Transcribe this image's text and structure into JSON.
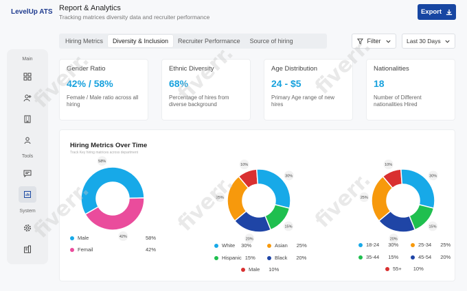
{
  "brand": "LevelUp ATS",
  "header": {
    "title": "Report & Analytics",
    "subtitle": "Tracking matrices diversity data and recruiter performance",
    "export_label": "Export"
  },
  "tabs": [
    {
      "label": "Hiring Metrics",
      "active": false
    },
    {
      "label": "Diversity & Inclusion",
      "active": true
    },
    {
      "label": "Recruiter Performance",
      "active": false
    },
    {
      "label": "Source of hiring",
      "active": false
    }
  ],
  "filter_label": "Filter",
  "period_label": "Last 30 Days",
  "sidebar": {
    "sections": [
      "Main",
      "Tools",
      "System"
    ],
    "icons": [
      "grid-icon",
      "user-add-icon",
      "building-icon",
      "person-icon",
      "message-icon",
      "report-icon",
      "gear-icon",
      "building-alt-icon"
    ]
  },
  "cards": [
    {
      "title": "Gender Ratio",
      "value": "42% / 58%",
      "desc": "Female / Male  ratio across all hiring"
    },
    {
      "title": "Ethnic Diversity",
      "value": "68%",
      "desc": "Percentage of hires from diverse background"
    },
    {
      "title": "Age Distribution",
      "value": "24 - $5",
      "desc": "Primary  Age range of new hires"
    },
    {
      "title": "Nationalities",
      "value": "18",
      "desc": "Number of Different nationalities Hired"
    }
  ],
  "chart_panel": {
    "title": "Hiring Metrics Over Time",
    "subtitle": "Track Key hiring matrices across department"
  },
  "chart_data": [
    {
      "type": "pie",
      "title": "",
      "slices": [
        {
          "label": "Male",
          "value": 58,
          "color": "#17a9e8"
        },
        {
          "label": "Femail",
          "value": 42,
          "color": "#ea4c9c"
        }
      ],
      "slice_labels": [
        "58%",
        "42%"
      ],
      "legend": [
        {
          "label": "Male",
          "pct": "58%"
        },
        {
          "label": "Femail",
          "pct": "42%"
        }
      ]
    },
    {
      "type": "pie",
      "title": "",
      "slices": [
        {
          "label": "Male",
          "value": 10,
          "color": "#d93030"
        },
        {
          "label": "White",
          "value": 30,
          "color": "#17a9e8"
        },
        {
          "label": "Hispanic",
          "value": 15,
          "color": "#1fbf4f"
        },
        {
          "label": "Black",
          "value": 20,
          "color": "#1f45a6"
        },
        {
          "label": "Asian",
          "value": 25,
          "color": "#f7990c"
        }
      ],
      "slice_labels": [
        "10%",
        "30%",
        "15%",
        "20%",
        "25%"
      ],
      "legend": [
        {
          "label": "White",
          "pct": "30%"
        },
        {
          "label": "Asian",
          "pct": "25%"
        },
        {
          "label": "Hispanic",
          "pct": "15%"
        },
        {
          "label": "Black",
          "pct": "20%"
        },
        {
          "label": "Male",
          "pct": "10%"
        }
      ]
    },
    {
      "type": "pie",
      "title": "",
      "slices": [
        {
          "label": "55+",
          "value": 10,
          "color": "#d93030"
        },
        {
          "label": "18-24",
          "value": 30,
          "color": "#17a9e8"
        },
        {
          "label": "35-44",
          "value": 15,
          "color": "#1fbf4f"
        },
        {
          "label": "45-54",
          "value": 20,
          "color": "#1f45a6"
        },
        {
          "label": "25-34",
          "value": 25,
          "color": "#f7990c"
        }
      ],
      "slice_labels": [
        "10%",
        "30%",
        "15%",
        "20%",
        "25%"
      ],
      "legend": [
        {
          "label": "18-24",
          "pct": "30%"
        },
        {
          "label": "25-34",
          "pct": "25%"
        },
        {
          "label": "35-44",
          "pct": "15%"
        },
        {
          "label": "45-54",
          "pct": "20%"
        },
        {
          "label": "55+",
          "pct": "10%"
        }
      ]
    }
  ],
  "colors": {
    "accent": "#1746a2",
    "value_text": "#17a1dd"
  },
  "watermark": "fiverr."
}
